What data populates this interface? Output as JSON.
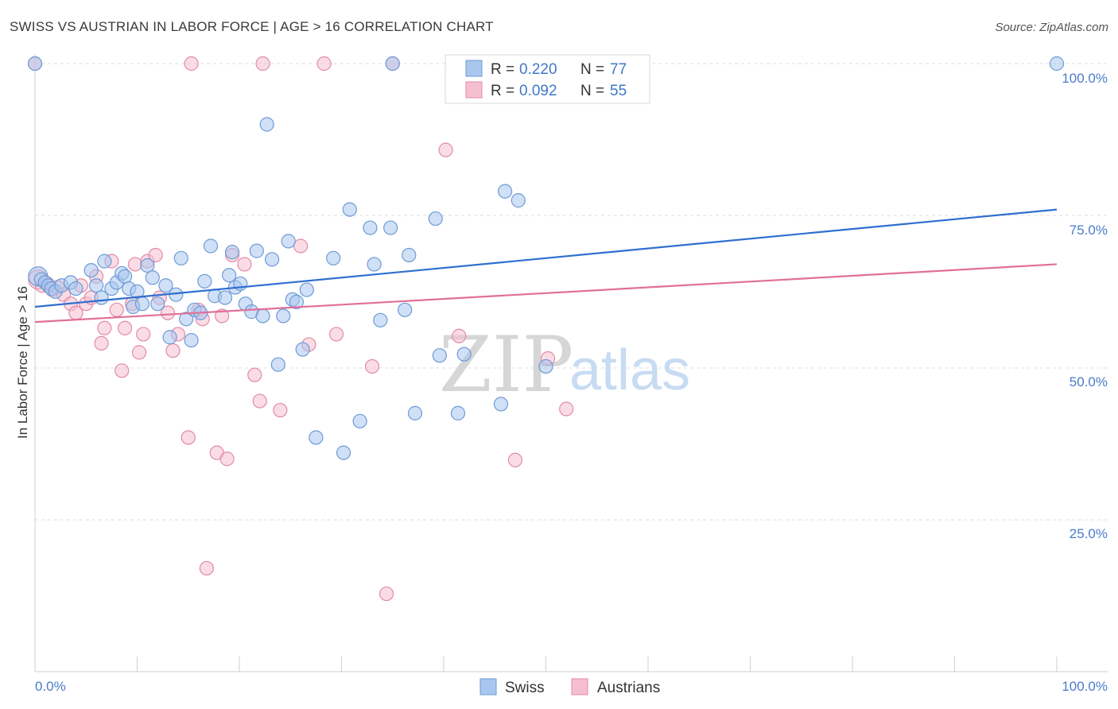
{
  "title": "SWISS VS AUSTRIAN IN LABOR FORCE | AGE > 16 CORRELATION CHART",
  "source": "Source: ZipAtlas.com",
  "watermark": {
    "zip": "ZIP",
    "atlas": "atlas"
  },
  "legend": {
    "rows": [
      {
        "r_label": "R =",
        "r_value": "0.220",
        "n_label": "N =",
        "n_value": "77"
      },
      {
        "r_label": "R =",
        "r_value": "0.092",
        "n_label": "N =",
        "n_value": "55"
      }
    ]
  },
  "bottom_legend": {
    "swiss": "Swiss",
    "austrians": "Austrians"
  },
  "colors": {
    "swiss_fill": "#a9c7ee",
    "swiss_stroke": "#6e9bd6",
    "swiss_line": "#2f6fcf",
    "austrians_fill": "#f6bfd0",
    "austrians_stroke": "#e28aa8",
    "austrians_line": "#e07098"
  },
  "chart_data": {
    "type": "scatter",
    "title": "SWISS VS AUSTRIAN IN LABOR FORCE | AGE > 16 CORRELATION CHART",
    "xlabel": "",
    "ylabel": "In Labor Force | Age > 16",
    "xlim": [
      0,
      100
    ],
    "ylim": [
      0,
      100
    ],
    "x_tick_labels": [
      "0.0%",
      "100.0%"
    ],
    "y_tick_labels": [
      "25.0%",
      "50.0%",
      "75.0%",
      "100.0%"
    ],
    "grid": true,
    "legend_position": "top-center",
    "series": [
      {
        "name": "Swiss",
        "r": 0.22,
        "n": 77,
        "trend": {
          "x": [
            0,
            100
          ],
          "y": [
            60.0,
            76.0
          ]
        },
        "points": [
          [
            0.3,
            65.0
          ],
          [
            0.6,
            64.5
          ],
          [
            1.0,
            64.0
          ],
          [
            1.3,
            63.5
          ],
          [
            1.6,
            63.0
          ],
          [
            2.0,
            62.5
          ],
          [
            2.6,
            63.5
          ],
          [
            3.5,
            64.0
          ],
          [
            4.0,
            63.0
          ],
          [
            5.5,
            66.0
          ],
          [
            6.0,
            63.5
          ],
          [
            6.5,
            61.5
          ],
          [
            6.8,
            67.5
          ],
          [
            7.5,
            63.0
          ],
          [
            8.0,
            64.0
          ],
          [
            8.5,
            65.5
          ],
          [
            8.8,
            65.0
          ],
          [
            9.2,
            63.0
          ],
          [
            9.6,
            60.0
          ],
          [
            10.0,
            62.5
          ],
          [
            10.5,
            60.5
          ],
          [
            11.0,
            66.8
          ],
          [
            11.5,
            64.8
          ],
          [
            12.0,
            60.5
          ],
          [
            12.8,
            63.5
          ],
          [
            13.2,
            55.0
          ],
          [
            13.8,
            62.0
          ],
          [
            14.3,
            68.0
          ],
          [
            14.8,
            58.0
          ],
          [
            15.3,
            54.5
          ],
          [
            15.6,
            59.5
          ],
          [
            16.2,
            59.0
          ],
          [
            16.6,
            64.2
          ],
          [
            17.2,
            70.0
          ],
          [
            17.6,
            61.8
          ],
          [
            18.6,
            61.5
          ],
          [
            19.0,
            65.2
          ],
          [
            19.3,
            69.0
          ],
          [
            19.6,
            63.2
          ],
          [
            20.1,
            63.8
          ],
          [
            20.6,
            60.5
          ],
          [
            21.2,
            59.2
          ],
          [
            21.7,
            69.2
          ],
          [
            22.3,
            58.5
          ],
          [
            22.7,
            90.0
          ],
          [
            23.2,
            67.8
          ],
          [
            23.8,
            50.5
          ],
          [
            24.3,
            58.5
          ],
          [
            24.8,
            70.8
          ],
          [
            25.2,
            61.2
          ],
          [
            25.6,
            60.8
          ],
          [
            26.2,
            53.0
          ],
          [
            26.6,
            62.8
          ],
          [
            27.5,
            38.5
          ],
          [
            29.2,
            68.0
          ],
          [
            30.2,
            36.0
          ],
          [
            30.8,
            76.0
          ],
          [
            31.8,
            41.2
          ],
          [
            32.8,
            73.0
          ],
          [
            33.2,
            67.0
          ],
          [
            33.8,
            57.8
          ],
          [
            34.8,
            73.0
          ],
          [
            35.0,
            100.0
          ],
          [
            36.2,
            59.5
          ],
          [
            36.6,
            68.5
          ],
          [
            37.2,
            42.5
          ],
          [
            39.2,
            74.5
          ],
          [
            39.6,
            52.0
          ],
          [
            41.4,
            42.5
          ],
          [
            42.0,
            52.2
          ],
          [
            45.6,
            44.0
          ],
          [
            46.0,
            79.0
          ],
          [
            47.3,
            77.5
          ],
          [
            50.0,
            50.2
          ],
          [
            51.2,
            100.0
          ],
          [
            100.0,
            100.0
          ],
          [
            0.0,
            100.0
          ]
        ]
      },
      {
        "name": "Austrians",
        "r": 0.092,
        "n": 55,
        "trend": {
          "x": [
            0,
            100
          ],
          "y": [
            57.5,
            67.0
          ]
        },
        "points": [
          [
            0.3,
            64.5
          ],
          [
            0.7,
            63.5
          ],
          [
            1.2,
            63.8
          ],
          [
            1.7,
            62.8
          ],
          [
            2.2,
            63.2
          ],
          [
            2.8,
            62.0
          ],
          [
            3.5,
            60.5
          ],
          [
            4.0,
            59.0
          ],
          [
            4.5,
            63.5
          ],
          [
            5.0,
            60.5
          ],
          [
            5.5,
            61.5
          ],
          [
            6.0,
            65.0
          ],
          [
            6.5,
            54.0
          ],
          [
            6.8,
            56.5
          ],
          [
            7.5,
            67.5
          ],
          [
            8.0,
            59.5
          ],
          [
            8.5,
            49.5
          ],
          [
            8.8,
            56.5
          ],
          [
            9.5,
            60.5
          ],
          [
            9.8,
            67.0
          ],
          [
            10.2,
            52.5
          ],
          [
            10.6,
            55.5
          ],
          [
            11.0,
            67.5
          ],
          [
            11.8,
            68.5
          ],
          [
            12.2,
            61.5
          ],
          [
            13.0,
            59.0
          ],
          [
            13.5,
            52.8
          ],
          [
            14.0,
            55.5
          ],
          [
            15.0,
            38.5
          ],
          [
            15.3,
            100.0
          ],
          [
            16.0,
            59.5
          ],
          [
            16.4,
            58.0
          ],
          [
            16.8,
            17.0
          ],
          [
            17.8,
            36.0
          ],
          [
            18.3,
            58.5
          ],
          [
            18.8,
            35.0
          ],
          [
            19.3,
            68.5
          ],
          [
            20.5,
            67.0
          ],
          [
            21.5,
            48.8
          ],
          [
            22.0,
            44.5
          ],
          [
            22.3,
            100.0
          ],
          [
            24.0,
            43.0
          ],
          [
            26.0,
            70.0
          ],
          [
            26.8,
            53.8
          ],
          [
            28.3,
            100.0
          ],
          [
            29.5,
            55.5
          ],
          [
            33.0,
            50.2
          ],
          [
            34.4,
            12.8
          ],
          [
            35.0,
            100.0
          ],
          [
            40.2,
            85.8
          ],
          [
            41.5,
            55.2
          ],
          [
            47.0,
            34.8
          ],
          [
            50.2,
            51.5
          ],
          [
            52.0,
            43.2
          ],
          [
            0.0,
            100.0
          ]
        ]
      }
    ]
  }
}
